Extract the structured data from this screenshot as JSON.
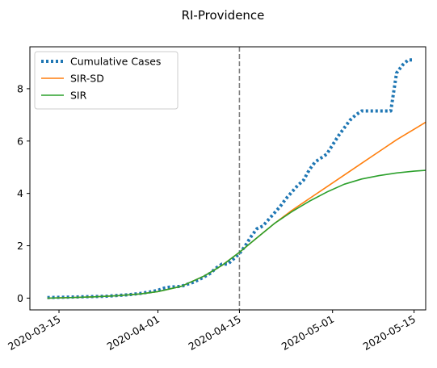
{
  "chart_data": {
    "type": "line",
    "title": "RI-Providence",
    "xlabel": "",
    "ylabel": "",
    "x_axis": {
      "type": "date",
      "range": [
        "2020-03-10",
        "2020-05-17"
      ],
      "tick_labels": [
        "2020-03-15",
        "2020-04-01",
        "2020-04-15",
        "2020-05-01",
        "2020-05-15"
      ]
    },
    "y_axis": {
      "range": [
        -0.45,
        9.6
      ],
      "tick_labels": [
        "0",
        "2",
        "4",
        "6",
        "8"
      ]
    },
    "grid": false,
    "legend_position": "top-left",
    "vline": {
      "x": "2020-04-15",
      "color": "#808080",
      "style": "dashed"
    },
    "series": [
      {
        "name": "Cumulative Cases",
        "color": "#1f77b4",
        "style": "dotted",
        "points": [
          [
            "2020-03-13",
            0.02
          ],
          [
            "2020-03-15",
            0.03
          ],
          [
            "2020-03-17",
            0.04
          ],
          [
            "2020-03-19",
            0.05
          ],
          [
            "2020-03-21",
            0.06
          ],
          [
            "2020-03-23",
            0.07
          ],
          [
            "2020-03-25",
            0.1
          ],
          [
            "2020-03-27",
            0.13
          ],
          [
            "2020-03-29",
            0.18
          ],
          [
            "2020-03-31",
            0.25
          ],
          [
            "2020-04-01",
            0.3
          ],
          [
            "2020-04-02",
            0.38
          ],
          [
            "2020-04-03",
            0.42
          ],
          [
            "2020-04-05",
            0.45
          ],
          [
            "2020-04-07",
            0.6
          ],
          [
            "2020-04-08",
            0.7
          ],
          [
            "2020-04-09",
            0.82
          ],
          [
            "2020-04-10",
            0.95
          ],
          [
            "2020-04-11",
            1.15
          ],
          [
            "2020-04-12",
            1.3
          ],
          [
            "2020-04-13",
            1.3
          ],
          [
            "2020-04-14",
            1.5
          ],
          [
            "2020-04-15",
            1.7
          ],
          [
            "2020-04-16",
            2.0
          ],
          [
            "2020-04-17",
            2.35
          ],
          [
            "2020-04-18",
            2.65
          ],
          [
            "2020-04-19",
            2.75
          ],
          [
            "2020-04-20",
            3.0
          ],
          [
            "2020-04-21",
            3.25
          ],
          [
            "2020-04-22",
            3.5
          ],
          [
            "2020-04-23",
            3.8
          ],
          [
            "2020-04-24",
            4.05
          ],
          [
            "2020-04-25",
            4.3
          ],
          [
            "2020-04-26",
            4.5
          ],
          [
            "2020-04-27",
            4.9
          ],
          [
            "2020-04-28",
            5.2
          ],
          [
            "2020-04-29",
            5.35
          ],
          [
            "2020-04-30",
            5.5
          ],
          [
            "2020-05-01",
            5.85
          ],
          [
            "2020-05-02",
            6.2
          ],
          [
            "2020-05-03",
            6.5
          ],
          [
            "2020-05-04",
            6.8
          ],
          [
            "2020-05-05",
            7.0
          ],
          [
            "2020-05-06",
            7.15
          ],
          [
            "2020-05-07",
            7.15
          ],
          [
            "2020-05-08",
            7.15
          ],
          [
            "2020-05-09",
            7.15
          ],
          [
            "2020-05-10",
            7.15
          ],
          [
            "2020-05-11",
            7.15
          ],
          [
            "2020-05-12",
            8.6
          ],
          [
            "2020-05-13",
            8.9
          ],
          [
            "2020-05-14",
            9.1
          ],
          [
            "2020-05-15",
            9.1
          ]
        ]
      },
      {
        "name": "SIR-SD",
        "color": "#ff7f0e",
        "style": "solid",
        "points": [
          [
            "2020-03-13",
            0.0
          ],
          [
            "2020-03-17",
            0.02
          ],
          [
            "2020-03-21",
            0.05
          ],
          [
            "2020-03-25",
            0.09
          ],
          [
            "2020-03-29",
            0.16
          ],
          [
            "2020-04-01",
            0.25
          ],
          [
            "2020-04-05",
            0.45
          ],
          [
            "2020-04-09",
            0.85
          ],
          [
            "2020-04-12",
            1.25
          ],
          [
            "2020-04-15",
            1.75
          ],
          [
            "2020-04-18",
            2.3
          ],
          [
            "2020-04-21",
            2.85
          ],
          [
            "2020-04-24",
            3.35
          ],
          [
            "2020-04-27",
            3.8
          ],
          [
            "2020-04-30",
            4.25
          ],
          [
            "2020-05-03",
            4.7
          ],
          [
            "2020-05-06",
            5.15
          ],
          [
            "2020-05-09",
            5.6
          ],
          [
            "2020-05-12",
            6.05
          ],
          [
            "2020-05-15",
            6.45
          ],
          [
            "2020-05-17",
            6.72
          ]
        ]
      },
      {
        "name": "SIR",
        "color": "#2ca02c",
        "style": "solid",
        "points": [
          [
            "2020-03-13",
            0.0
          ],
          [
            "2020-03-17",
            0.02
          ],
          [
            "2020-03-21",
            0.05
          ],
          [
            "2020-03-25",
            0.09
          ],
          [
            "2020-03-29",
            0.16
          ],
          [
            "2020-04-01",
            0.25
          ],
          [
            "2020-04-05",
            0.45
          ],
          [
            "2020-04-09",
            0.85
          ],
          [
            "2020-04-12",
            1.25
          ],
          [
            "2020-04-15",
            1.75
          ],
          [
            "2020-04-18",
            2.3
          ],
          [
            "2020-04-21",
            2.85
          ],
          [
            "2020-04-24",
            3.3
          ],
          [
            "2020-04-27",
            3.7
          ],
          [
            "2020-04-30",
            4.05
          ],
          [
            "2020-05-03",
            4.35
          ],
          [
            "2020-05-06",
            4.55
          ],
          [
            "2020-05-09",
            4.68
          ],
          [
            "2020-05-12",
            4.78
          ],
          [
            "2020-05-15",
            4.85
          ],
          [
            "2020-05-17",
            4.88
          ]
        ]
      }
    ]
  }
}
